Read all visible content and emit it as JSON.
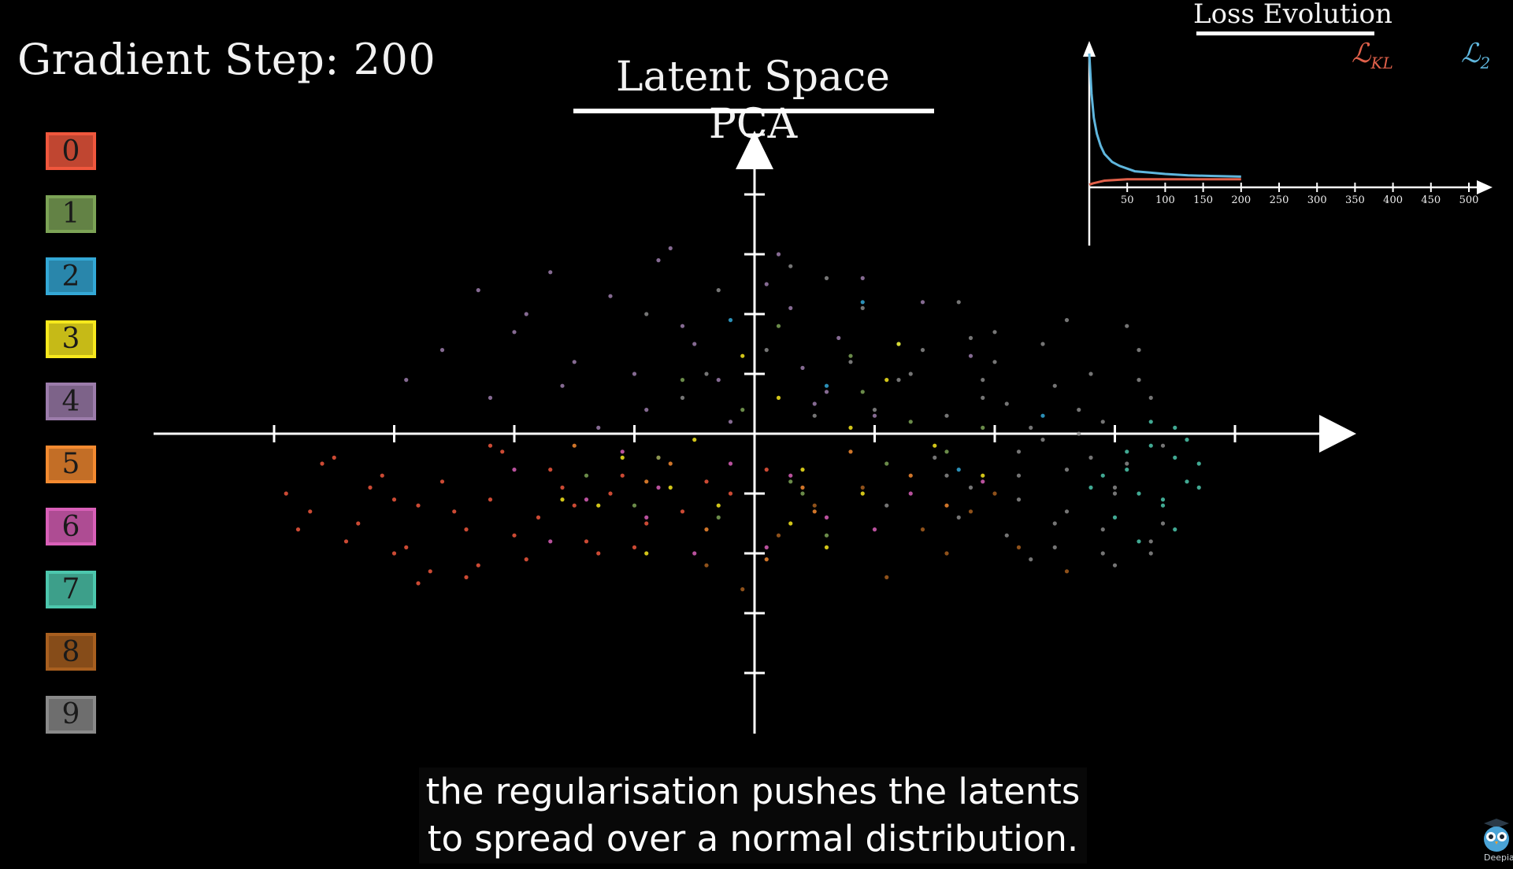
{
  "header": {
    "step_label": "Gradient Step: 200",
    "pca_title": "Latent Space PCA"
  },
  "legend": [
    {
      "label": "0",
      "color": "#f0573d"
    },
    {
      "label": "1",
      "color": "#7ca356"
    },
    {
      "label": "2",
      "color": "#33a8d6"
    },
    {
      "label": "3",
      "color": "#f7e81d"
    },
    {
      "label": "4",
      "color": "#9c7cab"
    },
    {
      "label": "5",
      "color": "#f48a30"
    },
    {
      "label": "6",
      "color": "#d95fb8"
    },
    {
      "label": "7",
      "color": "#4cc7ad"
    },
    {
      "label": "8",
      "color": "#a85f1f"
    },
    {
      "label": "9",
      "color": "#8a8a8a"
    }
  ],
  "loss_panel": {
    "title": "Loss Evolution",
    "kl_label": "ℒ",
    "kl_sub": "KL",
    "l2_label": "ℒ",
    "l2_sub": "2",
    "kl_color": "#e0604a",
    "l2_color": "#5fb6dd",
    "x_ticks": [
      "50",
      "100",
      "150",
      "200",
      "250",
      "300",
      "350",
      "400",
      "450",
      "500"
    ]
  },
  "chart_data": [
    {
      "type": "scatter",
      "title": "Latent Space PCA",
      "axes": {
        "x_ticks": 9,
        "y_ticks": 9,
        "arrows": true
      },
      "series": [
        {
          "name": "0",
          "color": "#f0573d",
          "x": [
            -3.6,
            -3.1,
            -2.8,
            -3.9,
            -3.3,
            -2.4,
            -2.9,
            -3.5,
            -2.2,
            -3.0,
            -2.6,
            -3.7,
            -2.0,
            -2.3,
            -3.2,
            -1.8,
            -2.7,
            -3.4,
            -2.1,
            -1.6,
            -1.9,
            -2.5,
            -1.4,
            -1.7,
            -3.8,
            -2.8,
            -1.2,
            -2.2,
            -1.5,
            -0.9,
            -1.1,
            -0.6,
            -1.3,
            -0.8,
            -0.4,
            0.1,
            -2.4,
            -3.0,
            -1.0,
            -0.2
          ],
          "y": [
            -0.5,
            -0.7,
            -1.2,
            -1.0,
            -1.5,
            -1.6,
            -1.9,
            -0.4,
            -1.1,
            -2.0,
            -0.8,
            -1.3,
            -1.7,
            -2.2,
            -0.9,
            -1.4,
            -2.3,
            -1.8,
            -0.3,
            -0.9,
            -2.1,
            -1.3,
            -1.8,
            -0.6,
            -1.6,
            -2.5,
            -1.0,
            -0.2,
            -1.2,
            -1.5,
            -0.7,
            -1.3,
            -2.0,
            -0.4,
            -0.8,
            -0.6,
            -2.4,
            -1.1,
            -1.9,
            -1.0
          ]
        },
        {
          "name": "1",
          "color": "#7ca356",
          "x": [
            -0.3,
            0.4,
            1.1,
            -1.0,
            0.9,
            1.6,
            -0.6,
            0.2,
            1.3,
            -1.4,
            0.6,
            -0.1,
            0.8,
            1.9,
            -0.8,
            0.3
          ],
          "y": [
            -1.4,
            -1.0,
            -0.5,
            -1.2,
            0.7,
            -0.3,
            0.9,
            1.8,
            0.2,
            -0.7,
            -1.7,
            0.4,
            1.3,
            0.1,
            -0.4,
            -0.8
          ]
        },
        {
          "name": "2",
          "color": "#33a8d6",
          "x": [
            0.9,
            1.2,
            -0.2,
            0.6,
            1.7,
            2.4
          ],
          "y": [
            2.2,
            1.5,
            1.9,
            0.8,
            -0.6,
            0.3
          ]
        },
        {
          "name": "3",
          "color": "#f7e81d",
          "x": [
            -1.1,
            -0.3,
            0.4,
            1.2,
            -0.7,
            0.6,
            -1.3,
            0.2,
            1.5,
            -0.5,
            0.9,
            -0.1,
            0.8,
            1.9,
            -0.9,
            0.3,
            1.1,
            -1.6
          ],
          "y": [
            -0.4,
            -1.2,
            -0.6,
            1.5,
            -0.9,
            -1.9,
            -1.2,
            0.6,
            -0.2,
            -0.1,
            -1.0,
            1.3,
            0.1,
            -0.7,
            -2.0,
            -1.5,
            0.9,
            -1.1
          ]
        },
        {
          "name": "4",
          "color": "#9c7cab",
          "x": [
            -2.6,
            -1.9,
            -1.2,
            -0.6,
            0.1,
            0.7,
            -2.2,
            -1.5,
            -0.9,
            -0.3,
            0.4,
            1.0,
            -1.7,
            -0.8,
            0.2,
            1.4,
            -2.9,
            -1.3,
            -0.5,
            0.6,
            1.8,
            -2.3,
            -1.0,
            0.3,
            -1.6,
            -0.2,
            0.9,
            -2.0,
            -0.7,
            0.5
          ],
          "y": [
            1.4,
            2.0,
            2.3,
            1.8,
            2.5,
            1.6,
            0.6,
            1.2,
            0.4,
            0.9,
            1.1,
            0.3,
            2.7,
            2.9,
            3.0,
            2.2,
            0.9,
            0.1,
            1.5,
            0.7,
            1.3,
            2.4,
            1.0,
            2.1,
            0.8,
            0.2,
            2.6,
            1.7,
            3.1,
            0.5
          ]
        },
        {
          "name": "5",
          "color": "#f48a30",
          "x": [
            -0.9,
            0.5,
            1.3,
            -0.4,
            0.8,
            -1.5,
            0.1,
            1.6,
            -0.7,
            0.4
          ],
          "y": [
            -0.8,
            -1.3,
            -0.7,
            -1.6,
            -0.3,
            -0.2,
            -2.1,
            -1.2,
            -0.5,
            -0.9
          ]
        },
        {
          "name": "6",
          "color": "#d95fb8",
          "x": [
            -2.0,
            -1.4,
            -0.8,
            -0.2,
            0.6,
            1.3,
            -1.7,
            -1.1,
            -0.5,
            0.3,
            1.0,
            1.9,
            -0.9,
            0.1
          ],
          "y": [
            -0.6,
            -1.1,
            -0.9,
            -0.5,
            -1.4,
            -1.0,
            -1.8,
            -0.3,
            -2.0,
            -0.7,
            -1.6,
            -0.8,
            -1.4,
            -1.9
          ]
        },
        {
          "name": "7",
          "color": "#4cc7ad",
          "x": [
            3.3,
            3.5,
            3.1,
            3.6,
            3.2,
            3.4,
            3.7,
            3.0,
            3.5,
            3.3,
            2.8,
            3.6,
            3.1,
            3.4,
            3.2,
            2.9,
            3.7,
            3.5
          ],
          "y": [
            -0.2,
            -0.4,
            -0.6,
            -0.8,
            -1.0,
            -1.2,
            -0.5,
            -1.4,
            -1.6,
            0.2,
            -0.9,
            -0.1,
            -0.3,
            -1.1,
            -1.8,
            -0.7,
            -0.9,
            0.1
          ]
        },
        {
          "name": "8",
          "color": "#a85f1f",
          "x": [
            0.5,
            1.4,
            2.2,
            -0.4,
            0.9,
            1.8,
            2.6,
            0.2,
            1.1,
            2.0,
            -0.1,
            1.6
          ],
          "y": [
            -1.2,
            -1.6,
            -1.9,
            -2.2,
            -0.9,
            -1.3,
            -2.3,
            -1.7,
            -2.4,
            -1.0,
            -2.6,
            -2.0
          ]
        },
        {
          "name": "9",
          "color": "#8a8a8a",
          "x": [
            2.1,
            2.5,
            2.9,
            3.3,
            2.2,
            2.6,
            3.0,
            3.4,
            2.0,
            2.4,
            2.8,
            3.2,
            1.6,
            1.9,
            2.3,
            2.7,
            3.1,
            1.5,
            1.8,
            2.2,
            2.6,
            3.0,
            3.4,
            1.7,
            2.1,
            2.5,
            2.9,
            3.3,
            1.9,
            2.4,
            2.8,
            3.2,
            1.4,
            2.0,
            2.6,
            3.1,
            1.2,
            1.6,
            2.3,
            2.9,
            0.9,
            1.3,
            1.8,
            2.5,
            3.0,
            1.1,
            1.7,
            2.2,
            2.7,
            3.3,
            -0.3,
            0.3,
            0.8,
            -0.6,
            0.1,
            0.5,
            -0.9,
            0.6,
            1.0,
            -0.4
          ],
          "y": [
            0.5,
            0.8,
            0.2,
            0.6,
            -0.3,
            -0.6,
            -0.9,
            -0.2,
            1.2,
            1.5,
            1.0,
            1.4,
            0.3,
            0.9,
            0.1,
            0.4,
            -0.5,
            -0.4,
            -0.9,
            -1.1,
            -1.3,
            -1.0,
            -1.5,
            -1.4,
            -1.7,
            -1.9,
            -1.6,
            -1.8,
            0.6,
            -0.1,
            -0.4,
            0.9,
            1.4,
            1.7,
            1.9,
            1.8,
            0.9,
            -0.7,
            -2.1,
            -2.0,
            2.1,
            1.0,
            1.6,
            -1.5,
            -2.2,
            -1.2,
            2.2,
            -0.7,
            0.0,
            -2.0,
            2.4,
            2.8,
            1.2,
            0.6,
            1.4,
            0.3,
            2.0,
            2.6,
            0.4,
            1.0
          ]
        }
      ]
    },
    {
      "type": "line",
      "title": "Loss Evolution",
      "xlim": [
        0,
        500
      ],
      "x_ticks": [
        50,
        100,
        150,
        200,
        250,
        300,
        350,
        400,
        450,
        500
      ],
      "series": [
        {
          "name": "ℒKL",
          "color": "#e0604a",
          "x": [
            0,
            5,
            20,
            50,
            100,
            150,
            200
          ],
          "y": [
            0.02,
            0.03,
            0.05,
            0.06,
            0.06,
            0.06,
            0.06
          ]
        },
        {
          "name": "ℒ2",
          "color": "#5fb6dd",
          "x": [
            0,
            3,
            6,
            10,
            15,
            20,
            30,
            40,
            50,
            60,
            80,
            100,
            130,
            160,
            200
          ],
          "y": [
            1.0,
            0.7,
            0.52,
            0.4,
            0.31,
            0.25,
            0.19,
            0.16,
            0.14,
            0.12,
            0.11,
            0.1,
            0.09,
            0.085,
            0.08
          ]
        }
      ]
    }
  ],
  "subtitle": {
    "line1": "the regularisation pushes the latents",
    "line2": "to spread over a normal distribution."
  },
  "branding": {
    "name": "Deepia",
    "mascot_icon": "owl-mascot-icon"
  }
}
